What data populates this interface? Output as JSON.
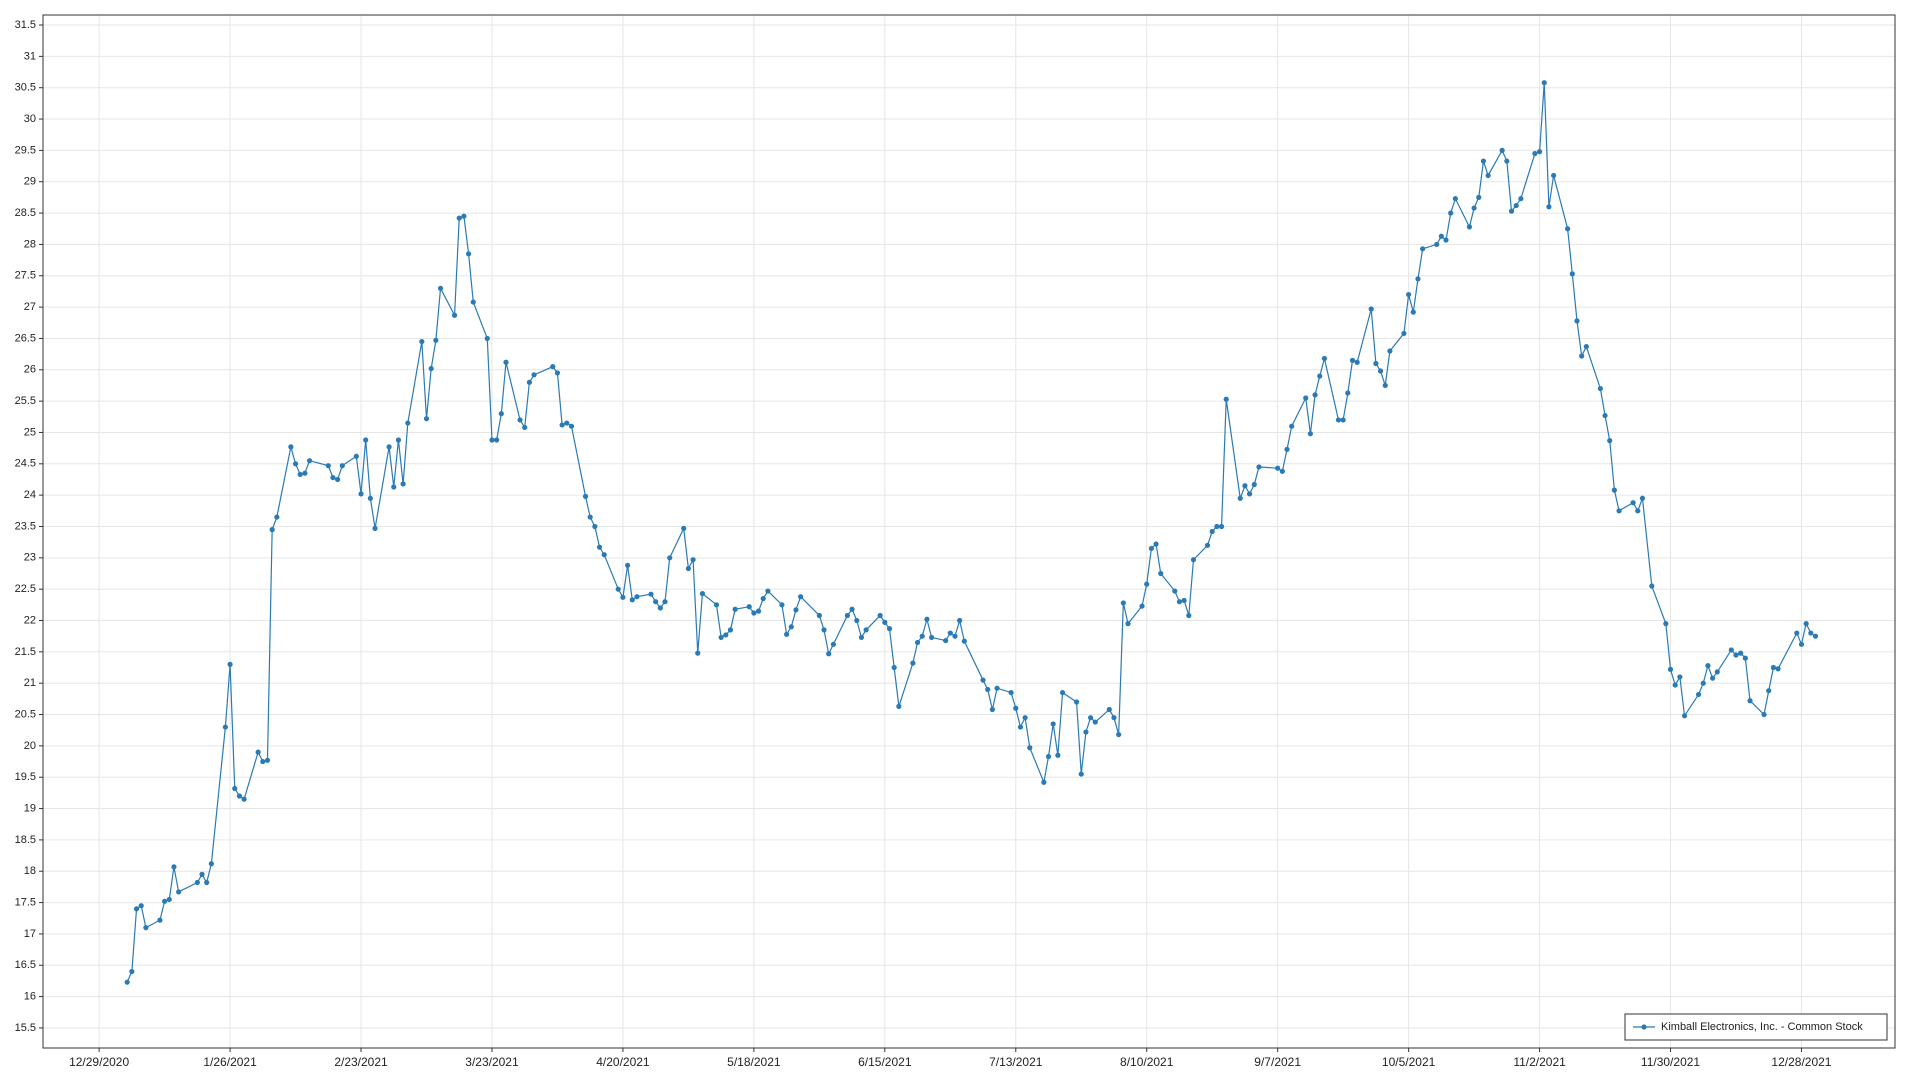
{
  "chart_data": {
    "type": "line",
    "x": [
      "1/4/2021",
      "1/5/2021",
      "1/6/2021",
      "1/7/2021",
      "1/8/2021",
      "1/11/2021",
      "1/12/2021",
      "1/13/2021",
      "1/14/2021",
      "1/15/2021",
      "1/19/2021",
      "1/20/2021",
      "1/21/2021",
      "1/22/2021",
      "1/25/2021",
      "1/26/2021",
      "1/27/2021",
      "1/28/2021",
      "1/29/2021",
      "2/1/2021",
      "2/2/2021",
      "2/3/2021",
      "2/4/2021",
      "2/5/2021",
      "2/8/2021",
      "2/9/2021",
      "2/10/2021",
      "2/11/2021",
      "2/12/2021",
      "2/16/2021",
      "2/17/2021",
      "2/18/2021",
      "2/19/2021",
      "2/22/2021",
      "2/23/2021",
      "2/24/2021",
      "2/25/2021",
      "2/26/2021",
      "3/1/2021",
      "3/2/2021",
      "3/3/2021",
      "3/4/2021",
      "3/5/2021",
      "3/8/2021",
      "3/9/2021",
      "3/10/2021",
      "3/11/2021",
      "3/12/2021",
      "3/15/2021",
      "3/16/2021",
      "3/17/2021",
      "3/18/2021",
      "3/19/2021",
      "3/22/2021",
      "3/23/2021",
      "3/24/2021",
      "3/25/2021",
      "3/26/2021",
      "3/29/2021",
      "3/30/2021",
      "3/31/2021",
      "4/1/2021",
      "4/5/2021",
      "4/6/2021",
      "4/7/2021",
      "4/8/2021",
      "4/9/2021",
      "4/12/2021",
      "4/13/2021",
      "4/14/2021",
      "4/15/2021",
      "4/16/2021",
      "4/19/2021",
      "4/20/2021",
      "4/21/2021",
      "4/22/2021",
      "4/23/2021",
      "4/26/2021",
      "4/27/2021",
      "4/28/2021",
      "4/29/2021",
      "4/30/2021",
      "5/3/2021",
      "5/4/2021",
      "5/5/2021",
      "5/6/2021",
      "5/7/2021",
      "5/10/2021",
      "5/11/2021",
      "5/12/2021",
      "5/13/2021",
      "5/14/2021",
      "5/17/2021",
      "5/18/2021",
      "5/19/2021",
      "5/20/2021",
      "5/21/2021",
      "5/24/2021",
      "5/25/2021",
      "5/26/2021",
      "5/27/2021",
      "5/28/2021",
      "6/1/2021",
      "6/2/2021",
      "6/3/2021",
      "6/4/2021",
      "6/7/2021",
      "6/8/2021",
      "6/9/2021",
      "6/10/2021",
      "6/11/2021",
      "6/14/2021",
      "6/15/2021",
      "6/16/2021",
      "6/17/2021",
      "6/18/2021",
      "6/21/2021",
      "6/22/2021",
      "6/23/2021",
      "6/24/2021",
      "6/25/2021",
      "6/28/2021",
      "6/29/2021",
      "6/30/2021",
      "7/1/2021",
      "7/2/2021",
      "7/6/2021",
      "7/7/2021",
      "7/8/2021",
      "7/9/2021",
      "7/12/2021",
      "7/13/2021",
      "7/14/2021",
      "7/15/2021",
      "7/16/2021",
      "7/19/2021",
      "7/20/2021",
      "7/21/2021",
      "7/22/2021",
      "7/23/2021",
      "7/26/2021",
      "7/27/2021",
      "7/28/2021",
      "7/29/2021",
      "7/30/2021",
      "8/2/2021",
      "8/3/2021",
      "8/4/2021",
      "8/5/2021",
      "8/6/2021",
      "8/9/2021",
      "8/10/2021",
      "8/11/2021",
      "8/12/2021",
      "8/13/2021",
      "8/16/2021",
      "8/17/2021",
      "8/18/2021",
      "8/19/2021",
      "8/20/2021",
      "8/23/2021",
      "8/24/2021",
      "8/25/2021",
      "8/26/2021",
      "8/27/2021",
      "8/30/2021",
      "8/31/2021",
      "9/1/2021",
      "9/2/2021",
      "9/3/2021",
      "9/7/2021",
      "9/8/2021",
      "9/9/2021",
      "9/10/2021",
      "9/13/2021",
      "9/14/2021",
      "9/15/2021",
      "9/16/2021",
      "9/17/2021",
      "9/20/2021",
      "9/21/2021",
      "9/22/2021",
      "9/23/2021",
      "9/24/2021",
      "9/27/2021",
      "9/28/2021",
      "9/29/2021",
      "9/30/2021",
      "10/1/2021",
      "10/4/2021",
      "10/5/2021",
      "10/6/2021",
      "10/7/2021",
      "10/8/2021",
      "10/11/2021",
      "10/12/2021",
      "10/13/2021",
      "10/14/2021",
      "10/15/2021",
      "10/18/2021",
      "10/19/2021",
      "10/20/2021",
      "10/21/2021",
      "10/22/2021",
      "10/25/2021",
      "10/26/2021",
      "10/27/2021",
      "10/28/2021",
      "10/29/2021",
      "11/1/2021",
      "11/2/2021",
      "11/3/2021",
      "11/4/2021",
      "11/5/2021",
      "11/8/2021",
      "11/9/2021",
      "11/10/2021",
      "11/11/2021",
      "11/12/2021",
      "11/15/2021",
      "11/16/2021",
      "11/17/2021",
      "11/18/2021",
      "11/19/2021",
      "11/22/2021",
      "11/23/2021",
      "11/24/2021",
      "11/26/2021",
      "11/29/2021",
      "11/30/2021",
      "12/1/2021",
      "12/2/2021",
      "12/3/2021",
      "12/6/2021",
      "12/7/2021",
      "12/8/2021",
      "12/9/2021",
      "12/10/2021",
      "12/13/2021",
      "12/14/2021",
      "12/15/2021",
      "12/16/2021",
      "12/17/2021",
      "12/20/2021",
      "12/21/2021",
      "12/22/2021",
      "12/23/2021",
      "12/27/2021",
      "12/28/2021",
      "12/29/2021",
      "12/30/2021",
      "12/31/2021"
    ],
    "series": [
      {
        "name": "Kimball Electronics, Inc. - Common Stock",
        "color": "#2a7ab5",
        "values": [
          16.23,
          16.4,
          17.4,
          17.45,
          17.1,
          17.22,
          17.52,
          17.55,
          18.07,
          17.67,
          17.82,
          17.95,
          17.82,
          18.12,
          20.3,
          21.3,
          19.32,
          19.2,
          19.15,
          19.9,
          19.75,
          19.77,
          23.45,
          23.65,
          24.77,
          24.5,
          24.33,
          24.35,
          24.55,
          24.47,
          24.28,
          24.25,
          24.47,
          24.62,
          24.02,
          24.88,
          23.95,
          23.47,
          24.77,
          24.13,
          24.88,
          24.18,
          25.15,
          26.45,
          25.22,
          26.02,
          26.47,
          27.3,
          26.87,
          28.42,
          28.45,
          27.85,
          27.08,
          26.5,
          24.88,
          24.88,
          25.3,
          26.12,
          25.2,
          25.08,
          25.8,
          25.92,
          26.05,
          25.95,
          25.12,
          25.15,
          25.1,
          23.98,
          23.65,
          23.5,
          23.17,
          23.05,
          22.5,
          22.37,
          22.88,
          22.33,
          22.38,
          22.42,
          22.3,
          22.2,
          22.3,
          23.0,
          23.47,
          22.83,
          22.97,
          21.48,
          22.43,
          22.25,
          21.73,
          21.77,
          21.85,
          22.18,
          22.22,
          22.12,
          22.15,
          22.35,
          22.47,
          22.25,
          21.78,
          21.9,
          22.17,
          22.38,
          22.08,
          21.85,
          21.47,
          21.62,
          22.08,
          22.18,
          22.0,
          21.73,
          21.85,
          22.08,
          21.97,
          21.87,
          21.25,
          20.63,
          21.32,
          21.65,
          21.75,
          22.02,
          21.73,
          21.68,
          21.8,
          21.75,
          22.0,
          21.67,
          21.05,
          20.9,
          20.58,
          20.92,
          20.85,
          20.6,
          20.3,
          20.45,
          19.97,
          19.42,
          19.83,
          20.35,
          19.85,
          20.85,
          20.7,
          19.55,
          20.22,
          20.45,
          20.38,
          20.58,
          20.45,
          20.18,
          22.28,
          21.95,
          22.23,
          22.58,
          23.15,
          23.22,
          22.75,
          22.47,
          22.3,
          22.32,
          22.08,
          22.97,
          23.2,
          23.42,
          23.5,
          23.5,
          25.53,
          23.95,
          24.15,
          24.02,
          24.17,
          24.45,
          24.43,
          24.38,
          24.73,
          25.1,
          25.55,
          24.98,
          25.6,
          25.9,
          26.18,
          25.2,
          25.2,
          25.63,
          26.15,
          26.12,
          26.97,
          26.1,
          25.98,
          25.75,
          26.3,
          26.58,
          27.2,
          26.92,
          27.45,
          27.93,
          28.0,
          28.13,
          28.07,
          28.5,
          28.73,
          28.28,
          28.58,
          28.75,
          29.33,
          29.1,
          29.5,
          29.33,
          28.53,
          28.62,
          28.73,
          29.45,
          29.48,
          30.58,
          28.6,
          29.1,
          28.25,
          27.53,
          26.78,
          26.22,
          26.37,
          25.7,
          25.27,
          24.87,
          24.08,
          23.75,
          23.88,
          23.75,
          23.95,
          22.55,
          21.95,
          21.22,
          20.97,
          21.1,
          20.48,
          20.82,
          21.0,
          21.28,
          21.08,
          21.18,
          21.53,
          21.45,
          21.48,
          21.4,
          20.72,
          20.5,
          20.88,
          21.25,
          21.23,
          21.8,
          21.62,
          21.95,
          21.8,
          21.75
        ]
      }
    ],
    "xlim": [
      "12/17/2020",
      "1/17/2022"
    ],
    "xticks": [
      "12/29/2020",
      "1/26/2021",
      "2/23/2021",
      "3/23/2021",
      "4/20/2021",
      "5/18/2021",
      "6/15/2021",
      "7/13/2021",
      "8/10/2021",
      "9/7/2021",
      "10/5/2021",
      "11/2/2021",
      "11/30/2021",
      "12/28/2021"
    ],
    "ylim": [
      15.18,
      31.66
    ],
    "yticks": [
      15.5,
      16,
      16.5,
      17,
      17.5,
      18,
      18.5,
      19,
      19.5,
      20,
      20.5,
      21,
      21.5,
      22,
      22.5,
      23,
      23.5,
      24,
      24.5,
      25,
      25.5,
      26,
      26.5,
      27,
      27.5,
      28,
      28.5,
      29,
      29.5,
      30,
      30.5,
      31,
      31.5
    ],
    "grid": true,
    "legend": "lower right"
  }
}
